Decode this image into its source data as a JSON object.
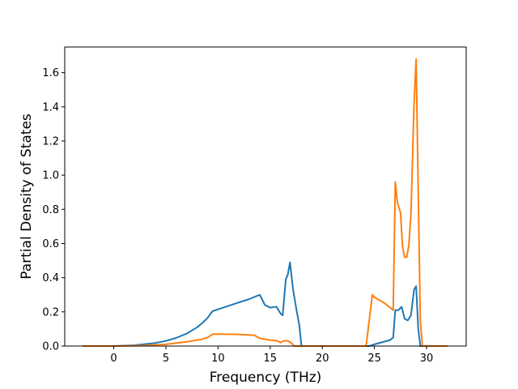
{
  "chart_data": {
    "type": "line",
    "title": "",
    "xlabel": "Frequency (THz)",
    "ylabel": "Partial Density of States",
    "xlim": [
      -4.7,
      33.8
    ],
    "ylim": [
      0,
      1.75
    ],
    "xticks": [
      0,
      5,
      10,
      15,
      20,
      25,
      30
    ],
    "yticks": [
      0.0,
      0.2,
      0.4,
      0.6,
      0.8,
      1.0,
      1.2,
      1.4,
      1.6
    ],
    "grid": false,
    "legend": "none",
    "series": [
      {
        "color": "#1f77b4",
        "x": [
          -3.0,
          0.0,
          2.0,
          4.0,
          5.0,
          6.0,
          7.0,
          8.0,
          8.5,
          9.0,
          9.3,
          9.5,
          10.0,
          11.0,
          12.0,
          13.0,
          13.6,
          14.0,
          14.5,
          15.0,
          15.6,
          16.0,
          16.2,
          16.5,
          16.7,
          16.9,
          17.2,
          17.5,
          17.8,
          18.0,
          20.0,
          24.5,
          25.0,
          26.5,
          26.8,
          27.0,
          27.3,
          27.6,
          27.9,
          28.2,
          28.5,
          28.8,
          29.0,
          29.2,
          29.4,
          32.0
        ],
        "y": [
          0.0,
          0.0,
          0.005,
          0.018,
          0.03,
          0.048,
          0.073,
          0.11,
          0.135,
          0.165,
          0.19,
          0.205,
          0.215,
          0.235,
          0.255,
          0.275,
          0.29,
          0.3,
          0.24,
          0.225,
          0.23,
          0.19,
          0.18,
          0.39,
          0.42,
          0.49,
          0.33,
          0.22,
          0.12,
          0.0,
          0.0,
          0.0,
          0.01,
          0.035,
          0.05,
          0.21,
          0.21,
          0.23,
          0.16,
          0.15,
          0.18,
          0.33,
          0.35,
          0.1,
          0.0,
          0.0
        ]
      },
      {
        "color": "#ff7f0e",
        "x": [
          -3.0,
          0.0,
          3.0,
          5.0,
          7.0,
          8.5,
          9.0,
          9.5,
          10.0,
          12.0,
          13.5,
          14.0,
          15.0,
          15.7,
          16.0,
          16.3,
          16.7,
          17.0,
          17.3,
          18.0,
          20.0,
          24.2,
          24.8,
          25.0,
          26.0,
          26.8,
          27.0,
          27.2,
          27.5,
          27.7,
          27.9,
          28.1,
          28.3,
          28.5,
          28.8,
          29.0,
          29.2,
          29.4,
          29.6,
          32.0
        ],
        "y": [
          0.0,
          0.0,
          0.003,
          0.01,
          0.025,
          0.04,
          0.05,
          0.07,
          0.07,
          0.068,
          0.063,
          0.045,
          0.035,
          0.03,
          0.02,
          0.03,
          0.03,
          0.02,
          0.0,
          0.0,
          0.0,
          0.0,
          0.3,
          0.285,
          0.25,
          0.21,
          0.96,
          0.84,
          0.78,
          0.58,
          0.52,
          0.52,
          0.59,
          0.77,
          1.42,
          1.68,
          0.9,
          0.15,
          0.0,
          0.0
        ]
      }
    ]
  }
}
